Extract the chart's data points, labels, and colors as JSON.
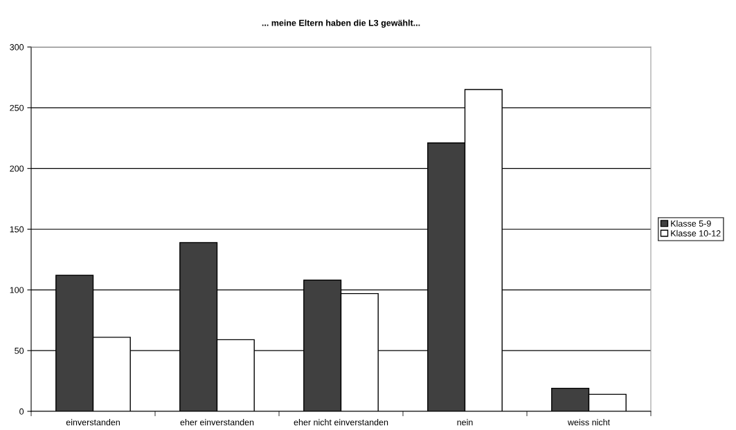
{
  "chart_data": {
    "type": "bar",
    "title": "... meine Eltern haben die L3 gewählt...",
    "categories": [
      "einverstanden",
      "eher einverstanden",
      "eher nicht einverstanden",
      "nein",
      "weiss nicht"
    ],
    "series": [
      {
        "name": "Klasse 5-9",
        "color": "#404040",
        "values": [
          112,
          139,
          108,
          221,
          19
        ]
      },
      {
        "name": "Klasse 10-12",
        "color": "#ffffff",
        "values": [
          61,
          59,
          97,
          265,
          14
        ]
      }
    ],
    "ylim": [
      0,
      300
    ],
    "yticks": [
      0,
      50,
      100,
      150,
      200,
      250,
      300
    ],
    "grid": "y",
    "legend": "right"
  }
}
